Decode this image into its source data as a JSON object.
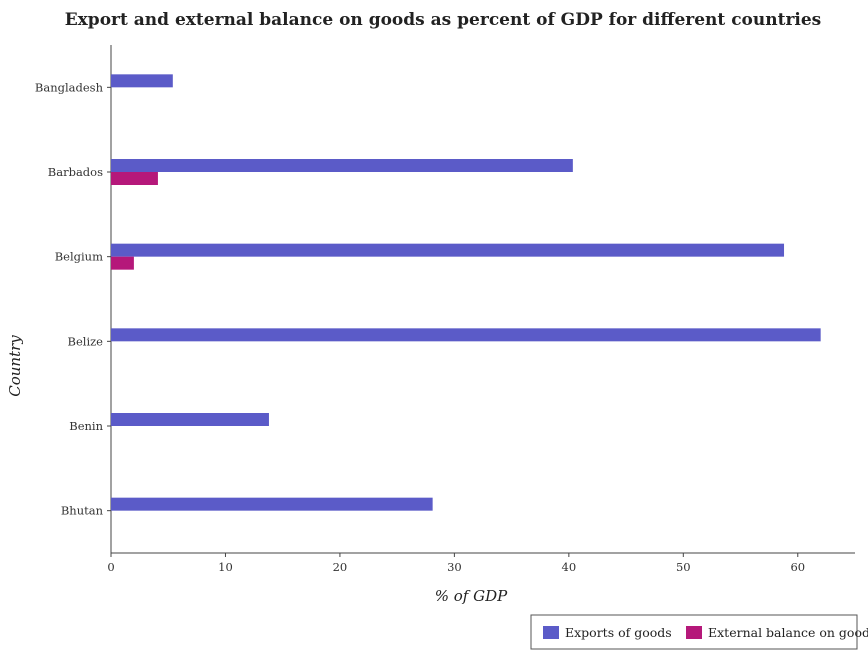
{
  "chart_data": {
    "type": "bar",
    "orientation": "horizontal",
    "title": "Export and external balance on goods as percent of GDP for different countries",
    "xlabel": "% of GDP",
    "ylabel": "Country",
    "categories": [
      "Bangladesh",
      "Barbados",
      "Belgium",
      "Belize",
      "Benin",
      "Bhutan"
    ],
    "series": [
      {
        "name": "Exports of goods",
        "color": "#5b5bc8",
        "values": [
          5.4,
          40.35,
          58.8,
          62.0,
          13.8,
          28.1
        ]
      },
      {
        "name": "External balance on goods",
        "color": "#b5187a",
        "values": [
          0,
          4.1,
          2.0,
          0,
          0,
          0
        ]
      }
    ],
    "xlim": [
      0,
      65
    ],
    "xticks": [
      0,
      10,
      20,
      30,
      40,
      50,
      60
    ],
    "grid": false,
    "legend_position": "bottom-right"
  }
}
